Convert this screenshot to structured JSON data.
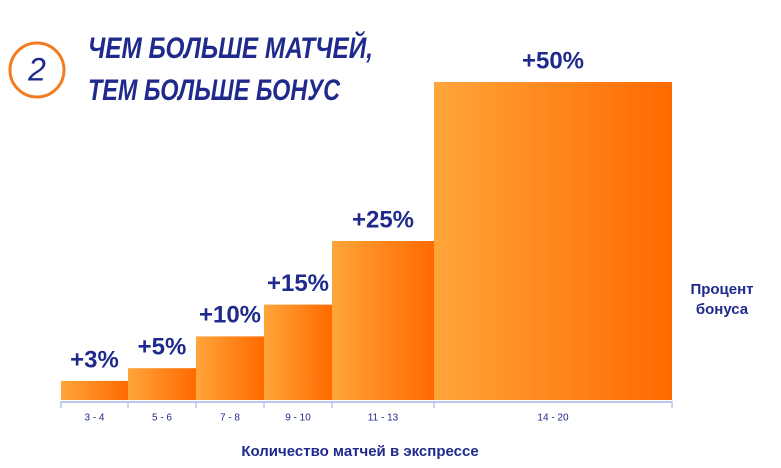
{
  "chart_data": {
    "type": "bar",
    "badge": "2",
    "title": [
      "ЧЕМ БОЛЬШЕ МАТЧЕЙ,",
      "ТЕМ БОЛЬШЕ БОНУС"
    ],
    "categories": [
      "3 - 4",
      "5 - 6",
      "7 - 8",
      "9 - 10",
      "11 - 13",
      "14 - 20"
    ],
    "values": [
      3,
      5,
      10,
      15,
      25,
      50
    ],
    "value_labels": [
      "+3%",
      "+5%",
      "+10%",
      "+15%",
      "+25%",
      "+50%"
    ],
    "x_label": "Количество матчей в экспрессе",
    "y_label": "Процент бонуса",
    "color": "#ff7a00"
  }
}
